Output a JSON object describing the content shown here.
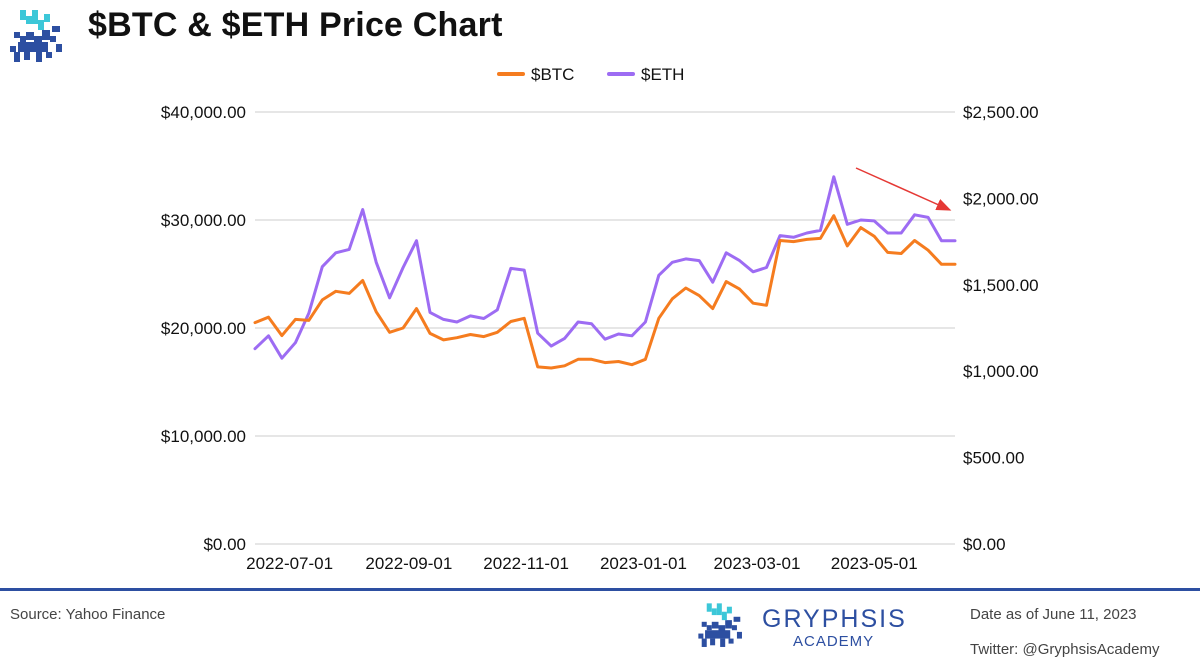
{
  "header": {
    "title": "$BTC & $ETH Price Chart"
  },
  "footer": {
    "source": "Source: Yahoo Finance",
    "brand_name": "GRYPHSIS",
    "brand_sub": "ACADEMY",
    "date": "Date as of June 11, 2023",
    "twitter": "Twitter: @GryphsisAcademy"
  },
  "colors": {
    "btc": "#f57c1f",
    "eth": "#9d6cf3",
    "grid": "#cccccc",
    "footer_rule": "#2d4fa1",
    "annotation_arrow": "#e53935",
    "logo_blue": "#2d4fa1",
    "logo_teal": "#3cc7d8"
  },
  "icons": {
    "header_logo": "gryphon-logo-icon",
    "footer_logo": "gryphon-logo-icon",
    "annotation": "downtrend-arrow-icon"
  },
  "chart_data": {
    "type": "line",
    "title": "",
    "xlabel": "",
    "ylabel": "",
    "grid": true,
    "legend_position": "top-center",
    "y_left_ticks": [
      "$0.00",
      "$10,000.00",
      "$20,000.00",
      "$30,000.00",
      "$40,000.00"
    ],
    "y_left_lim": [
      0,
      40000
    ],
    "y_right_ticks": [
      "$0.00",
      "$500.00",
      "$1,000.00",
      "$1,500.00",
      "$2,000.00",
      "$2,500.00"
    ],
    "y_right_lim": [
      0,
      2500
    ],
    "x_tick_labels": [
      "2022-07-01",
      "2022-09-01",
      "2022-11-01",
      "2023-01-01",
      "2023-03-01",
      "2023-05-01"
    ],
    "x_tick_dates": [
      "2022-07-01",
      "2022-09-01",
      "2022-11-01",
      "2023-01-01",
      "2023-03-01",
      "2023-05-01"
    ],
    "x": [
      "2022-06-13",
      "2022-06-20",
      "2022-06-27",
      "2022-07-04",
      "2022-07-11",
      "2022-07-18",
      "2022-07-25",
      "2022-08-01",
      "2022-08-08",
      "2022-08-15",
      "2022-08-22",
      "2022-08-29",
      "2022-09-05",
      "2022-09-12",
      "2022-09-19",
      "2022-09-26",
      "2022-10-03",
      "2022-10-10",
      "2022-10-17",
      "2022-10-24",
      "2022-10-31",
      "2022-11-07",
      "2022-11-14",
      "2022-11-21",
      "2022-11-28",
      "2022-12-05",
      "2022-12-12",
      "2022-12-19",
      "2022-12-26",
      "2023-01-02",
      "2023-01-09",
      "2023-01-16",
      "2023-01-23",
      "2023-01-30",
      "2023-02-06",
      "2023-02-13",
      "2023-02-20",
      "2023-02-27",
      "2023-03-06",
      "2023-03-13",
      "2023-03-20",
      "2023-03-27",
      "2023-04-03",
      "2023-04-10",
      "2023-04-17",
      "2023-04-24",
      "2023-05-01",
      "2023-05-08",
      "2023-05-15",
      "2023-05-22",
      "2023-05-29",
      "2023-06-05",
      "2023-06-12"
    ],
    "series": [
      {
        "name": "$BTC",
        "axis": "left",
        "values": [
          20500,
          21000,
          19300,
          20800,
          20700,
          22600,
          23400,
          23200,
          24400,
          21500,
          19600,
          20000,
          21800,
          19500,
          18900,
          19100,
          19400,
          19200,
          19600,
          20600,
          20900,
          16400,
          16300,
          16500,
          17100,
          17100,
          16800,
          16900,
          16600,
          17100,
          20900,
          22700,
          23700,
          23000,
          21800,
          24300,
          23600,
          22300,
          22100,
          28100,
          28000,
          28200,
          28300,
          30400,
          27600,
          29300,
          28500,
          27000,
          26900,
          28100,
          27200,
          25900,
          25900
        ]
      },
      {
        "name": "$ETH",
        "axis": "right",
        "values": [
          1130,
          1205,
          1075,
          1165,
          1335,
          1605,
          1685,
          1705,
          1935,
          1630,
          1425,
          1600,
          1755,
          1340,
          1300,
          1285,
          1320,
          1305,
          1355,
          1595,
          1585,
          1220,
          1145,
          1190,
          1285,
          1275,
          1185,
          1215,
          1205,
          1285,
          1555,
          1630,
          1650,
          1640,
          1515,
          1685,
          1640,
          1575,
          1600,
          1785,
          1775,
          1800,
          1815,
          2125,
          1850,
          1875,
          1870,
          1800,
          1800,
          1905,
          1890,
          1755,
          1755
        ]
      }
    ]
  }
}
